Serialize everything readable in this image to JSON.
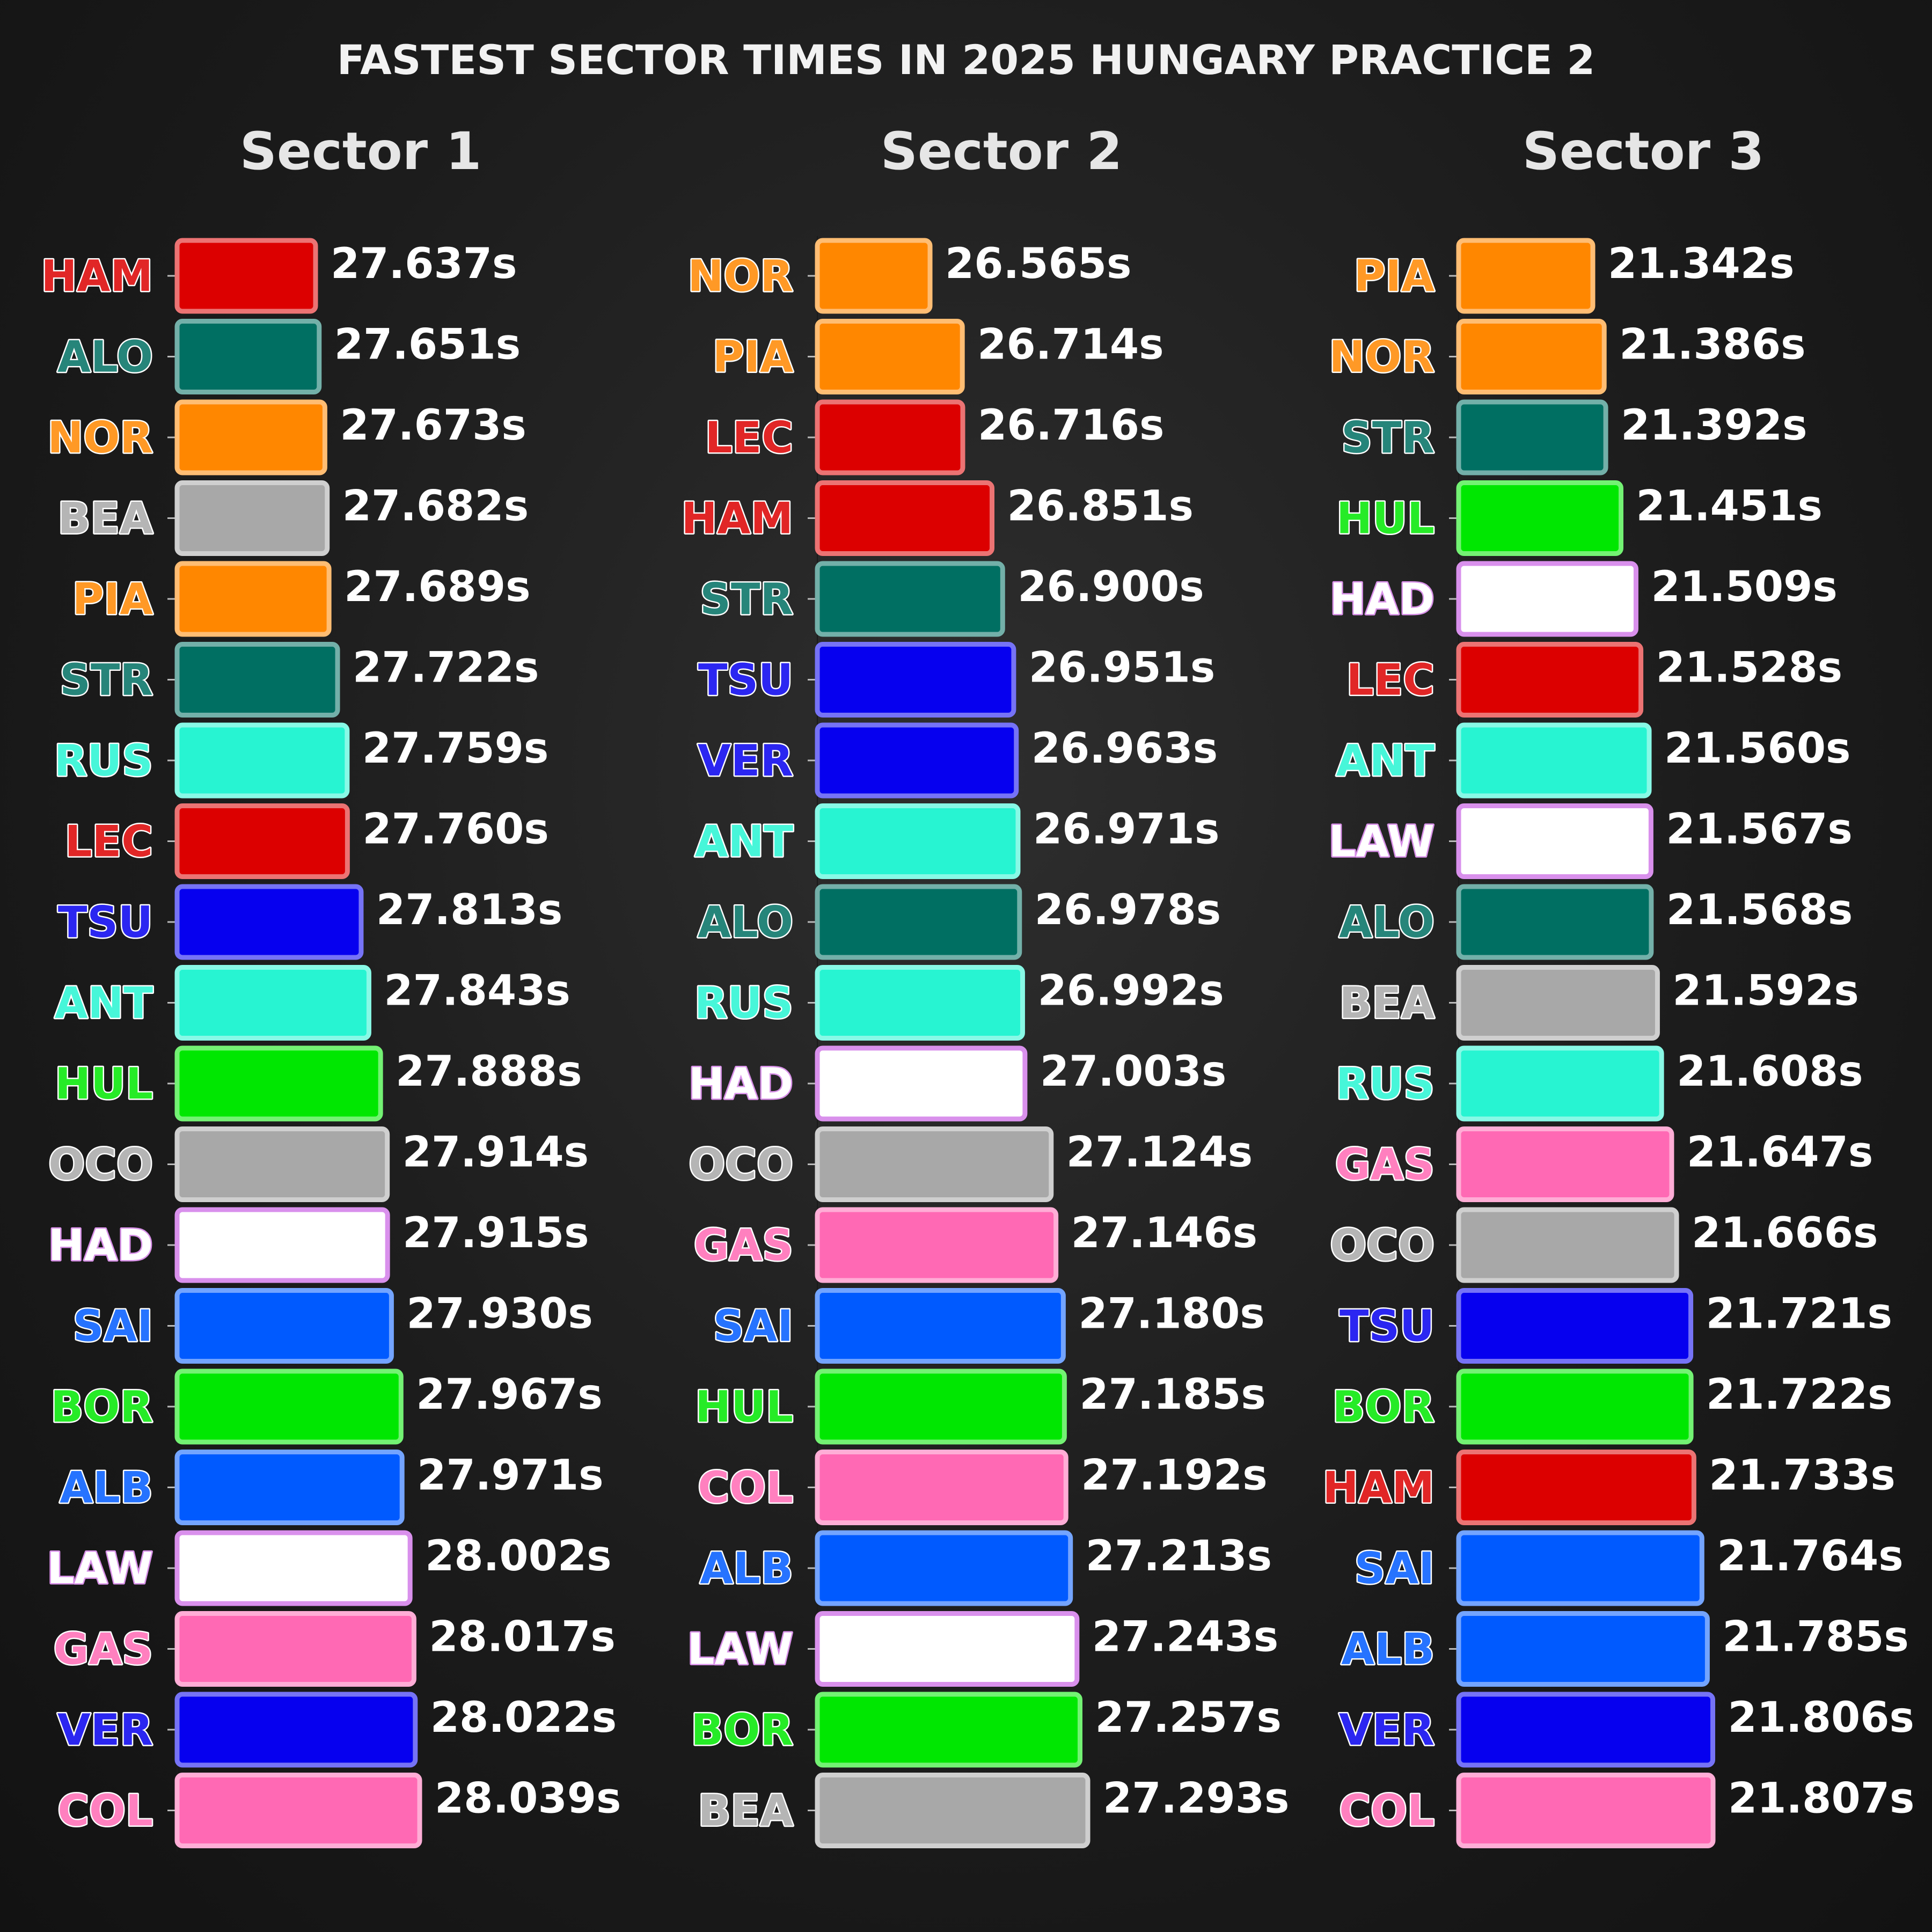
{
  "title": "FASTEST SECTOR TIMES IN 2025 HUNGARY PRACTICE 2",
  "team_colors": {
    "HAM": "#dc0000",
    "LEC": "#dc0000",
    "NOR": "#ff8700",
    "PIA": "#ff8700",
    "ALO": "#006f62",
    "STR": "#006f62",
    "RUS": "#27f4d2",
    "ANT": "#27f4d2",
    "VER": "#0600ef",
    "TSU": "#0600ef",
    "HUL": "#00e701",
    "BOR": "#00e701",
    "BEA": "#a8a8a8",
    "OCO": "#a8a8a8",
    "HAD": "#ffffff",
    "LAW": "#ffffff",
    "SAI": "#005aff",
    "ALB": "#005aff",
    "GAS": "#ff69b4",
    "COL": "#ff69b4"
  },
  "chart_data": [
    {
      "type": "bar",
      "title": "Sector 1",
      "unit": "s",
      "drivers": [
        "HAM",
        "ALO",
        "NOR",
        "BEA",
        "PIA",
        "STR",
        "RUS",
        "LEC",
        "TSU",
        "ANT",
        "HUL",
        "OCO",
        "HAD",
        "SAI",
        "BOR",
        "ALB",
        "LAW",
        "GAS",
        "VER",
        "COL"
      ],
      "values": [
        27.637,
        27.651,
        27.673,
        27.682,
        27.689,
        27.722,
        27.759,
        27.76,
        27.813,
        27.843,
        27.888,
        27.914,
        27.915,
        27.93,
        27.967,
        27.971,
        28.002,
        28.017,
        28.022,
        28.039
      ],
      "labels": [
        "27.637s",
        "27.651s",
        "27.673s",
        "27.682s",
        "27.689s",
        "27.722s",
        "27.759s",
        "27.760s",
        "27.813s",
        "27.843s",
        "27.888s",
        "27.914s",
        "27.915s",
        "27.930s",
        "27.967s",
        "27.971s",
        "28.002s",
        "28.017s",
        "28.022s",
        "28.039s"
      ]
    },
    {
      "type": "bar",
      "title": "Sector 2",
      "unit": "s",
      "drivers": [
        "NOR",
        "PIA",
        "LEC",
        "HAM",
        "STR",
        "TSU",
        "VER",
        "ANT",
        "ALO",
        "RUS",
        "HAD",
        "OCO",
        "GAS",
        "SAI",
        "HUL",
        "COL",
        "ALB",
        "LAW",
        "BOR",
        "BEA"
      ],
      "values": [
        26.565,
        26.714,
        26.716,
        26.851,
        26.9,
        26.951,
        26.963,
        26.971,
        26.978,
        26.992,
        27.003,
        27.124,
        27.146,
        27.18,
        27.185,
        27.192,
        27.213,
        27.243,
        27.257,
        27.293
      ],
      "labels": [
        "26.565s",
        "26.714s",
        "26.716s",
        "26.851s",
        "26.900s",
        "26.951s",
        "26.963s",
        "26.971s",
        "26.978s",
        "26.992s",
        "27.003s",
        "27.124s",
        "27.146s",
        "27.180s",
        "27.185s",
        "27.192s",
        "27.213s",
        "27.243s",
        "27.257s",
        "27.293s"
      ]
    },
    {
      "type": "bar",
      "title": "Sector 3",
      "unit": "s",
      "drivers": [
        "PIA",
        "NOR",
        "STR",
        "HUL",
        "HAD",
        "LEC",
        "ANT",
        "LAW",
        "ALO",
        "BEA",
        "RUS",
        "GAS",
        "OCO",
        "TSU",
        "BOR",
        "HAM",
        "SAI",
        "ALB",
        "VER",
        "COL"
      ],
      "values": [
        21.342,
        21.386,
        21.392,
        21.451,
        21.509,
        21.528,
        21.56,
        21.567,
        21.568,
        21.592,
        21.608,
        21.647,
        21.666,
        21.721,
        21.722,
        21.733,
        21.764,
        21.785,
        21.806,
        21.807
      ],
      "labels": [
        "21.342s",
        "21.386s",
        "21.392s",
        "21.451s",
        "21.509s",
        "21.528s",
        "21.560s",
        "21.567s",
        "21.568s",
        "21.592s",
        "21.608s",
        "21.647s",
        "21.666s",
        "21.721s",
        "21.722s",
        "21.733s",
        "21.764s",
        "21.785s",
        "21.806s",
        "21.807s"
      ]
    }
  ]
}
